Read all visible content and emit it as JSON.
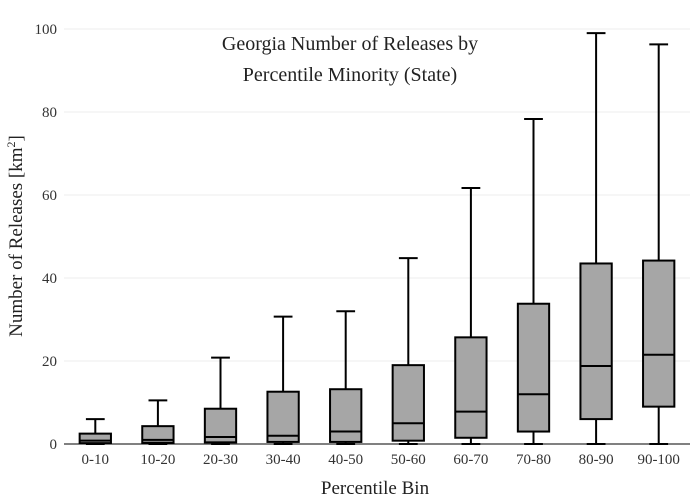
{
  "chart_data": {
    "type": "box",
    "title_lines": [
      "Georgia Number of Releases by",
      "Percentile Minority (State)"
    ],
    "xlabel": "Percentile Bin",
    "ylabel": "Number of Releases  [km",
    "ylabel_sup": "2",
    "ylabel_close": "]",
    "ylim": [
      0,
      100
    ],
    "yticks": [
      0,
      20,
      40,
      60,
      80,
      100
    ],
    "grid": true,
    "legend": "none",
    "box_color": "#a6a6a6",
    "categories": [
      "0-10",
      "10-20",
      "20-30",
      "30-40",
      "40-50",
      "50-60",
      "60-70",
      "70-80",
      "80-90",
      "90-100"
    ],
    "boxes": [
      {
        "min": 0,
        "q1": 0.2,
        "median": 0.8,
        "q3": 2.5,
        "max": 6
      },
      {
        "min": 0,
        "q1": 0.3,
        "median": 1.0,
        "q3": 4.3,
        "max": 10.5
      },
      {
        "min": 0,
        "q1": 0.4,
        "median": 1.7,
        "q3": 8.5,
        "max": 20.8
      },
      {
        "min": 0,
        "q1": 0.5,
        "median": 2.0,
        "q3": 12.6,
        "max": 30.7
      },
      {
        "min": 0,
        "q1": 0.5,
        "median": 3.0,
        "q3": 13.2,
        "max": 32.0
      },
      {
        "min": 0,
        "q1": 0.8,
        "median": 5.0,
        "q3": 19.0,
        "max": 44.8
      },
      {
        "min": 0,
        "q1": 1.5,
        "median": 7.8,
        "q3": 25.7,
        "max": 61.7
      },
      {
        "min": 0,
        "q1": 3.0,
        "median": 12.0,
        "q3": 33.8,
        "max": 78.3
      },
      {
        "min": 0,
        "q1": 6.0,
        "median": 18.8,
        "q3": 43.5,
        "max": 99.0
      },
      {
        "min": 0,
        "q1": 9.0,
        "median": 21.5,
        "q3": 44.2,
        "max": 96.3
      }
    ]
  }
}
